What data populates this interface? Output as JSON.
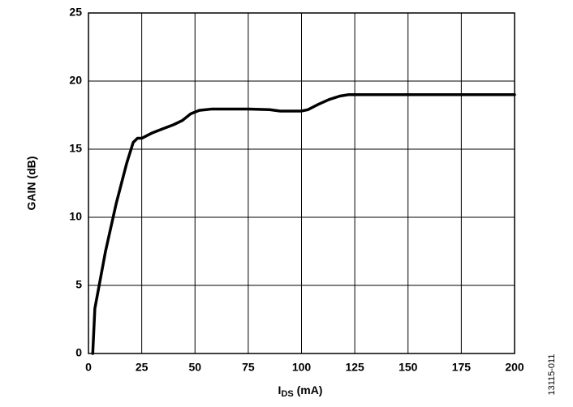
{
  "chart_data": {
    "type": "line",
    "xlabel": [
      "I",
      "DS",
      " (mA)"
    ],
    "ylabel": "GAIN (dB)",
    "side_note": "13115-011",
    "xlim": [
      0,
      200
    ],
    "xticks": [
      0,
      25,
      50,
      75,
      100,
      125,
      150,
      175,
      200
    ],
    "ylim": [
      0,
      25
    ],
    "yticks": [
      0,
      5,
      10,
      15,
      20,
      25
    ],
    "grid": true,
    "series": [
      {
        "color": "#000000",
        "x": [
          2,
          3,
          8,
          13,
          18,
          21,
          23,
          25,
          30,
          35,
          40,
          44,
          48,
          52,
          58,
          65,
          75,
          85,
          90,
          95,
          100,
          103,
          108,
          113,
          118,
          122,
          130,
          150,
          175,
          200
        ],
        "values": [
          0,
          3.3,
          7.5,
          11,
          14,
          15.5,
          15.8,
          15.8,
          16.2,
          16.5,
          16.8,
          17.1,
          17.6,
          17.85,
          17.95,
          17.95,
          17.95,
          17.9,
          17.8,
          17.8,
          17.8,
          17.9,
          18.3,
          18.65,
          18.9,
          19,
          19,
          19,
          19,
          19
        ]
      }
    ]
  }
}
